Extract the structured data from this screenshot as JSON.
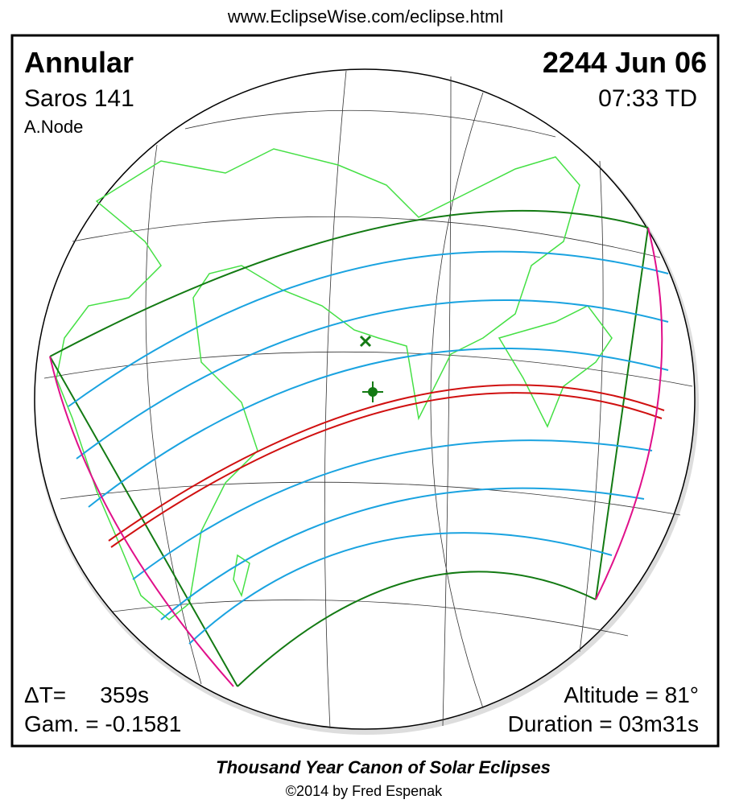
{
  "header": {
    "url": "www.EclipseWise.com/eclipse.html"
  },
  "eclipse": {
    "type": "Annular",
    "date": "2244 Jun 06",
    "saros": "Saros 141",
    "time": "07:33 TD",
    "node": "A.Node",
    "delta_t_label": "ΔT=",
    "delta_t": "359s",
    "gamma": "Gam. = -0.1581",
    "altitude": "Altitude = 81°",
    "duration": "Duration = 03m31s"
  },
  "footer": {
    "title": "Thousand Year Canon of Solar Eclipses",
    "copyright": "©2014 by Fred Espenak"
  }
}
